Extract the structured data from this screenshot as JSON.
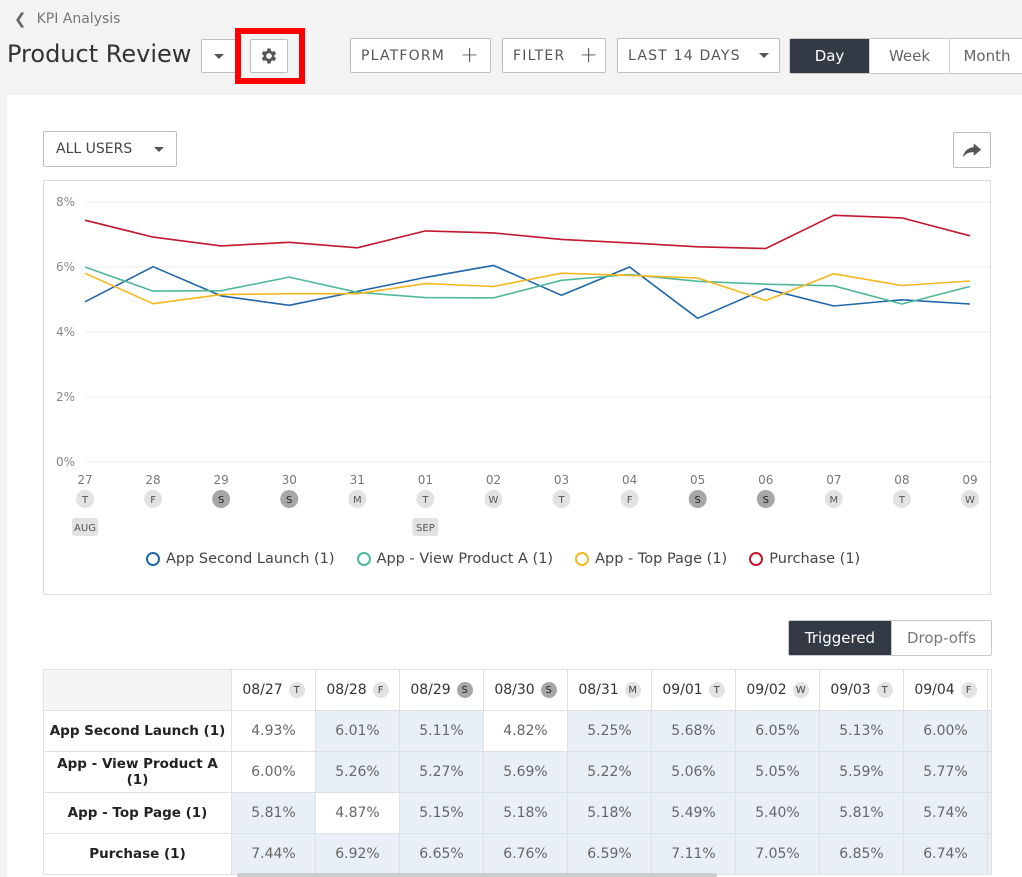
{
  "breadcrumb": {
    "label": "KPI Analysis"
  },
  "header": {
    "title": "Product Review"
  },
  "toolbar": {
    "platform_label": "PLATFORM",
    "filter_label": "FILTER",
    "range_label": "LAST 14 DAYS",
    "granularity": [
      "Day",
      "Week",
      "Month"
    ],
    "active_granularity": "Day"
  },
  "segment": {
    "label": "ALL USERS"
  },
  "toggle": {
    "triggered": "Triggered",
    "dropoffs": "Drop-offs"
  },
  "colors": {
    "app_second_launch": "#2166a8",
    "app_view_product_a": "#4fb79a",
    "app_top_page": "#f5b81c",
    "purchase": "#c2172f",
    "accent_dark": "#343946",
    "highlight": "#ff0000"
  },
  "chart_data": {
    "type": "line",
    "ylim": [
      0,
      8
    ],
    "yticks": [
      "0%",
      "2%",
      "4%",
      "6%",
      "8%"
    ],
    "x_days": [
      "27",
      "28",
      "29",
      "30",
      "31",
      "01",
      "02",
      "03",
      "04",
      "05",
      "06",
      "07",
      "08",
      "09"
    ],
    "x_weekdays": [
      "T",
      "F",
      "S",
      "S",
      "M",
      "T",
      "W",
      "T",
      "F",
      "S",
      "S",
      "M",
      "T",
      "W"
    ],
    "weekend": [
      false,
      false,
      true,
      true,
      false,
      false,
      false,
      false,
      false,
      true,
      true,
      false,
      false,
      false
    ],
    "month_markers": [
      {
        "index": 0,
        "label": "AUG"
      },
      {
        "index": 5,
        "label": "SEP"
      }
    ],
    "series": [
      {
        "name": "App Second Launch (1)",
        "color": "#2166a8",
        "values": [
          4.93,
          6.01,
          5.11,
          4.82,
          5.25,
          5.68,
          6.05,
          5.13,
          6.0,
          4.42,
          5.33,
          4.8,
          4.99,
          4.86
        ]
      },
      {
        "name": "App - View Product A (1)",
        "color": "#4fb79a",
        "values": [
          6.0,
          5.26,
          5.27,
          5.69,
          5.22,
          5.06,
          5.05,
          5.59,
          5.77,
          5.56,
          5.47,
          5.42,
          4.86,
          5.4
        ]
      },
      {
        "name": "App - Top Page (1)",
        "color": "#f5b81c",
        "values": [
          5.81,
          4.87,
          5.15,
          5.18,
          5.18,
          5.49,
          5.4,
          5.81,
          5.74,
          5.66,
          4.97,
          5.79,
          5.43,
          5.57
        ]
      },
      {
        "name": "Purchase (1)",
        "color": "#c2172f",
        "values": [
          7.44,
          6.92,
          6.65,
          6.76,
          6.59,
          7.11,
          7.05,
          6.85,
          6.74,
          6.62,
          6.57,
          7.59,
          7.51,
          6.96
        ]
      }
    ]
  },
  "table": {
    "columns": [
      {
        "date": "08/27",
        "day": "T",
        "weekend": false
      },
      {
        "date": "08/28",
        "day": "F",
        "weekend": false
      },
      {
        "date": "08/29",
        "day": "S",
        "weekend": true
      },
      {
        "date": "08/30",
        "day": "S",
        "weekend": true
      },
      {
        "date": "08/31",
        "day": "M",
        "weekend": false
      },
      {
        "date": "09/01",
        "day": "T",
        "weekend": false
      },
      {
        "date": "09/02",
        "day": "W",
        "weekend": false
      },
      {
        "date": "09/03",
        "day": "T",
        "weekend": false
      },
      {
        "date": "09/04",
        "day": "F",
        "weekend": false
      }
    ],
    "rows": [
      {
        "label": "App Second Launch (1)",
        "values": [
          "4.93%",
          "6.01%",
          "5.11%",
          "4.82%",
          "5.25%",
          "5.68%",
          "6.05%",
          "5.13%",
          "6.00%"
        ],
        "highlight": [
          false,
          true,
          true,
          false,
          true,
          true,
          true,
          true,
          true
        ]
      },
      {
        "label": "App - View Product A (1)",
        "values": [
          "6.00%",
          "5.26%",
          "5.27%",
          "5.69%",
          "5.22%",
          "5.06%",
          "5.05%",
          "5.59%",
          "5.77%"
        ],
        "highlight": [
          false,
          true,
          true,
          true,
          true,
          true,
          true,
          true,
          true
        ]
      },
      {
        "label": "App - Top Page (1)",
        "values": [
          "5.81%",
          "4.87%",
          "5.15%",
          "5.18%",
          "5.18%",
          "5.49%",
          "5.40%",
          "5.81%",
          "5.74%"
        ],
        "highlight": [
          true,
          false,
          true,
          true,
          true,
          true,
          true,
          true,
          true
        ]
      },
      {
        "label": "Purchase (1)",
        "values": [
          "7.44%",
          "6.92%",
          "6.65%",
          "6.76%",
          "6.59%",
          "7.11%",
          "7.05%",
          "6.85%",
          "6.74%"
        ],
        "highlight": [
          true,
          true,
          true,
          true,
          true,
          true,
          true,
          true,
          true
        ]
      }
    ]
  }
}
